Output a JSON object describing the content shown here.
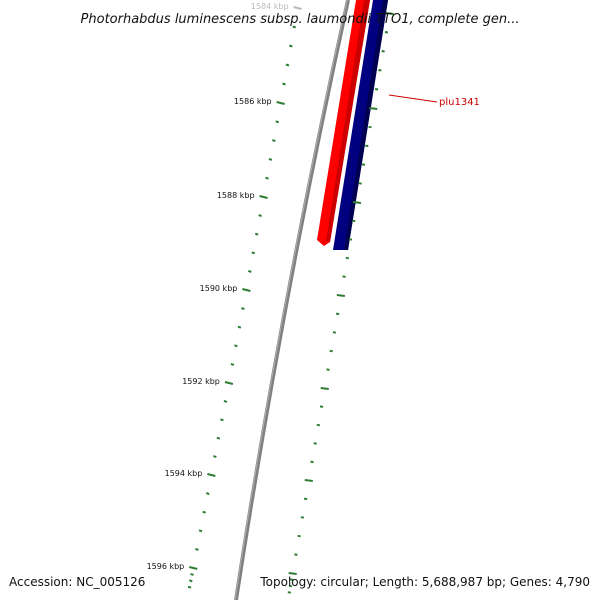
{
  "title": "Photorhabdus luminescens subsp. laumondii TTO1, complete gen...",
  "ticks": [
    {
      "label": "1584 kbp",
      "major": true,
      "faded": true
    },
    {
      "label": "1586 kbp",
      "major": true
    },
    {
      "label": "1588 kbp",
      "major": true
    },
    {
      "label": "1590 kbp",
      "major": true
    },
    {
      "label": "1592 kbp",
      "major": true
    },
    {
      "label": "1594 kbp",
      "major": true
    },
    {
      "label": "1596 kbp",
      "major": true
    }
  ],
  "genes": [
    {
      "name": "plu1341",
      "strand": "reverse",
      "color": "#ff0000"
    },
    {
      "name": "",
      "strand": "forward",
      "color": "#000080"
    }
  ],
  "gene_label": "plu1341",
  "footer": {
    "accession": "Accession: NC_005126",
    "summary": "Topology: circular; Length: 5,688,987 bp; Genes: 4,790"
  },
  "colors": {
    "tick": "#2e7d32",
    "backbone": "#808080",
    "reverse_gene": "#ff0000",
    "forward_gene": "#000080",
    "gene_label": "#cc0000"
  }
}
